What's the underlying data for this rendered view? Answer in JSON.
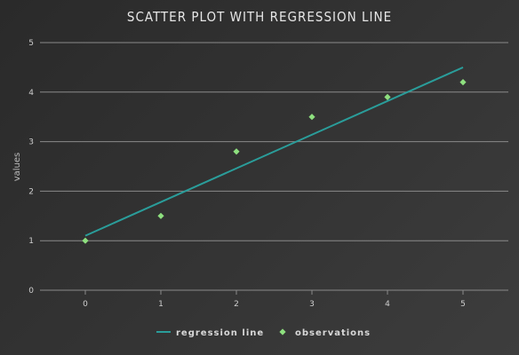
{
  "chart_data": {
    "type": "scatter",
    "title": "SCATTER PLOT WITH REGRESSION LINE",
    "xlabel": "",
    "ylabel": "values",
    "xlim": [
      -0.6,
      5.6
    ],
    "ylim": [
      0,
      5
    ],
    "x_ticks": [
      "0",
      "1",
      "2",
      "3",
      "4",
      "5"
    ],
    "y_ticks": [
      "0",
      "1",
      "2",
      "3",
      "4",
      "5"
    ],
    "grid": "horizontal",
    "legend_position": "bottom",
    "series": [
      {
        "name": "regression line",
        "kind": "line",
        "color": "#2a9d9a",
        "x": [
          0,
          5
        ],
        "y": [
          1.1,
          4.5
        ]
      },
      {
        "name": "observations",
        "kind": "scatter",
        "marker": "diamond",
        "color": "#8ee07f",
        "x": [
          0,
          1,
          2,
          3,
          4,
          5
        ],
        "y": [
          1.0,
          1.5,
          2.8,
          3.5,
          3.9,
          4.2
        ]
      }
    ]
  }
}
